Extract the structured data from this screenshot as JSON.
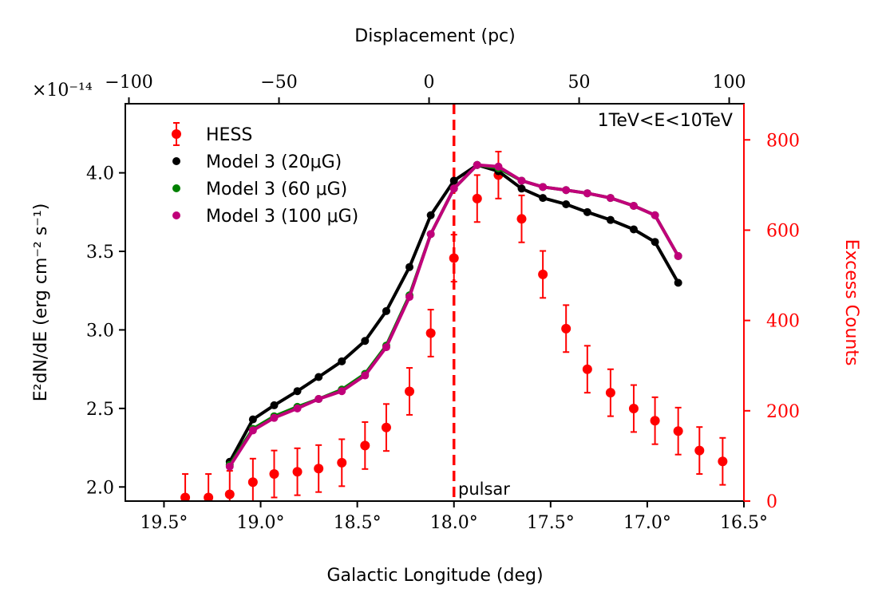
{
  "chart_data": {
    "type": "line",
    "title": "",
    "annotation_energy": "1TeV<E<10TeV",
    "annotation_pulsar": "pulsar",
    "xlabel": "Galactic Longitude (deg)",
    "ylabel": "E²dN/dE (erg cm⁻² s⁻¹)",
    "y_multiplier": "×10⁻¹⁴",
    "y2label": "Excess Counts",
    "top_xlabel": "Displacement (pc)",
    "xlim": [
      19.7,
      16.5
    ],
    "ylim": [
      1.91,
      4.44
    ],
    "y2lim": [
      0,
      880
    ],
    "top_xlim": [
      -101.2,
      104.9
    ],
    "x_ticks": [
      19.5,
      19.0,
      18.5,
      18.0,
      17.5,
      17.0,
      16.5
    ],
    "x_tick_labels": [
      "19.5°",
      "19.0°",
      "18.5°",
      "18.0°",
      "17.5°",
      "17.0°",
      "16.5°"
    ],
    "y_ticks": [
      2.0,
      2.5,
      3.0,
      3.5,
      4.0
    ],
    "y_tick_labels": [
      "2.0",
      "2.5",
      "3.0",
      "3.5",
      "4.0"
    ],
    "y2_ticks": [
      0,
      200,
      400,
      600,
      800
    ],
    "y2_tick_labels": [
      "0",
      "200",
      "400",
      "600",
      "800"
    ],
    "top_ticks": [
      -100,
      -50,
      0,
      50,
      100
    ],
    "top_tick_labels": [
      "−100",
      "−50",
      "0",
      "50",
      "100"
    ],
    "pulsar_longitude": 18.0,
    "legend_position": "top-left",
    "colors": {
      "hess": "#ff0000",
      "model_20": "#000000",
      "model_60": "#008000",
      "model_100": "#c0007a",
      "pulsar_line": "#ff0000",
      "right_axis": "#ff0000"
    },
    "series": [
      {
        "name": "HESS",
        "legend_label": "HESS",
        "axis": "right",
        "style": "errorbar",
        "x": [
          19.39,
          19.27,
          19.16,
          19.04,
          18.93,
          18.81,
          18.7,
          18.58,
          18.46,
          18.35,
          18.23,
          18.12,
          18.0,
          17.88,
          17.77,
          17.65,
          17.54,
          17.42,
          17.31,
          17.19,
          17.07,
          16.96,
          16.84,
          16.73,
          16.61
        ],
        "y": [
          8,
          8,
          15,
          42,
          60,
          65,
          72,
          85,
          123,
          163,
          243,
          372,
          538,
          670,
          722,
          625,
          502,
          382,
          292,
          240,
          205,
          178,
          155,
          112,
          88
        ],
        "err": [
          52,
          52,
          52,
          52,
          52,
          52,
          52,
          52,
          52,
          52,
          52,
          52,
          52,
          52,
          52,
          52,
          52,
          52,
          52,
          52,
          52,
          52,
          52,
          52,
          52
        ]
      },
      {
        "name": "Model 3 (20μG)",
        "legend_label": "Model 3 (20μG)",
        "axis": "left",
        "style": "line-markers",
        "x": [
          19.16,
          19.04,
          18.93,
          18.81,
          18.7,
          18.58,
          18.46,
          18.35,
          18.23,
          18.12,
          18.0,
          17.88,
          17.77,
          17.65,
          17.54,
          17.42,
          17.31,
          17.19,
          17.07,
          16.96,
          16.84
        ],
        "y": [
          2.16,
          2.43,
          2.52,
          2.61,
          2.7,
          2.8,
          2.93,
          3.12,
          3.4,
          3.73,
          3.95,
          4.05,
          4.01,
          3.9,
          3.84,
          3.8,
          3.75,
          3.7,
          3.64,
          3.56,
          3.3
        ]
      },
      {
        "name": "Model 3 (60 μG)",
        "legend_label": "Model 3 (60 μG)",
        "axis": "left",
        "style": "line-markers",
        "x": [
          19.16,
          19.04,
          18.93,
          18.81,
          18.7,
          18.58,
          18.46,
          18.35,
          18.23,
          18.12,
          18.0,
          17.88,
          17.77,
          17.65,
          17.54,
          17.42,
          17.31,
          17.19,
          17.07,
          16.96,
          16.84
        ],
        "y": [
          2.14,
          2.37,
          2.45,
          2.51,
          2.56,
          2.62,
          2.72,
          2.9,
          3.22,
          3.61,
          3.9,
          4.05,
          4.03,
          3.95,
          3.91,
          3.89,
          3.87,
          3.84,
          3.79,
          3.73,
          3.47
        ]
      },
      {
        "name": "Model 3 (100 μG)",
        "legend_label": "Model 3 (100 μG)",
        "axis": "left",
        "style": "line-markers",
        "x": [
          19.16,
          19.04,
          18.93,
          18.81,
          18.7,
          18.58,
          18.46,
          18.35,
          18.23,
          18.12,
          18.0,
          17.88,
          17.77,
          17.65,
          17.54,
          17.42,
          17.31,
          17.19,
          17.07,
          16.96,
          16.84
        ],
        "y": [
          2.13,
          2.36,
          2.44,
          2.5,
          2.56,
          2.61,
          2.71,
          2.89,
          3.21,
          3.61,
          3.9,
          4.05,
          4.04,
          3.95,
          3.91,
          3.89,
          3.87,
          3.84,
          3.79,
          3.73,
          3.47
        ]
      }
    ]
  }
}
